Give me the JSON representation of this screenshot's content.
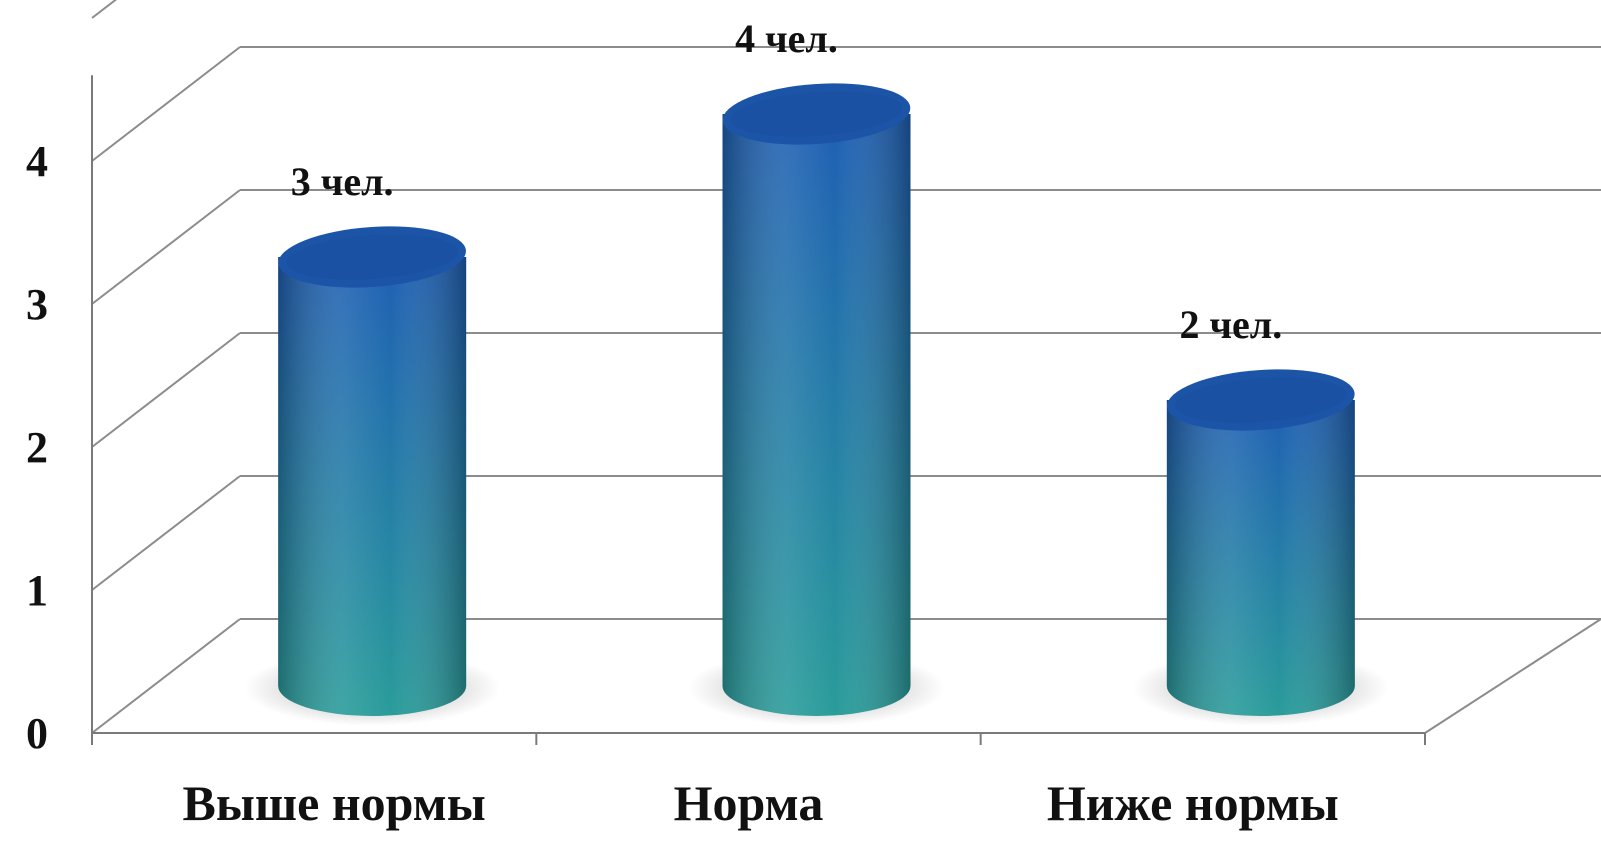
{
  "chart_data": {
    "type": "bar",
    "style": "3d-cylinder",
    "categories": [
      "Выше нормы",
      "Норма",
      "Ниже нормы"
    ],
    "values": [
      3,
      4,
      2
    ],
    "data_labels": [
      "3 чел.",
      "4 чел.",
      "2 чел."
    ],
    "yticks": [
      "0",
      "1",
      "2",
      "3",
      "4"
    ],
    "ylim": [
      0,
      4.8
    ],
    "grid": true,
    "legend": "none",
    "colors": {
      "bar_top": "#1f5fb4",
      "bar_bottom": "#2a9c9a",
      "bar_cap": "#1c55a8",
      "grid": "#8c8c8c",
      "axis": "#7a7a7a",
      "text": "#111111"
    }
  }
}
